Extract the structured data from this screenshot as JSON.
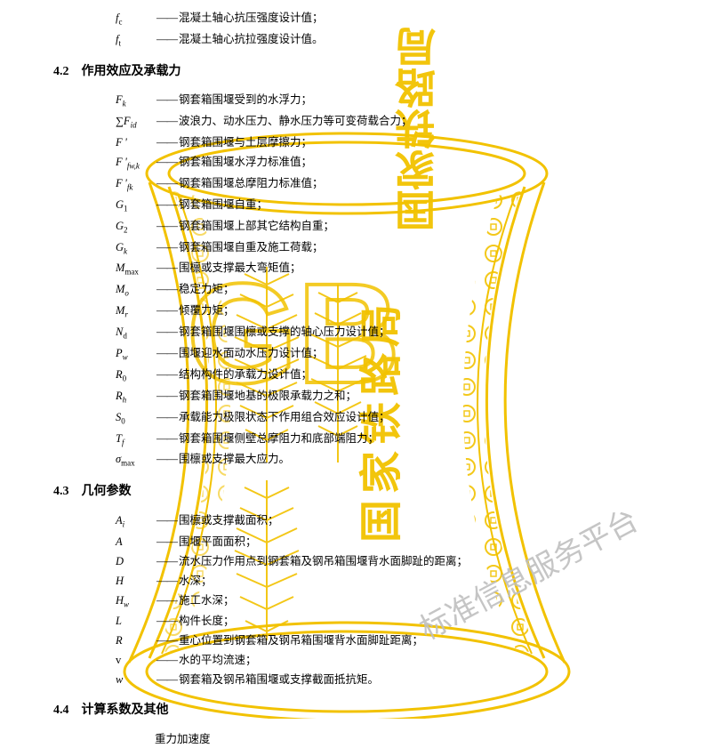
{
  "top_defs": [
    {
      "sym": "f<sub>c</sub>",
      "desc": "混凝土轴心抗压强度设计值；"
    },
    {
      "sym": "f<sub>t</sub>",
      "desc": "混凝土轴心抗拉强度设计值。"
    }
  ],
  "sections": [
    {
      "heading": "4.2　作用效应及承载力",
      "items": [
        {
          "sym": "<i>F</i><sub class='it'>k</sub>",
          "desc": "钢套箱围堰受到的水浮力；"
        },
        {
          "sym": "∑<i>F</i><sub class='it'>id</sub>",
          "desc": "波浪力、动水压力、静水压力等可变荷载合力；"
        },
        {
          "sym": "<i>F&thinsp;'</i>",
          "desc": "钢套箱围堰与土层摩擦力；"
        },
        {
          "sym": "<i>F&thinsp;'</i><sub class='it'>fw,k</sub>",
          "desc": "钢套箱围堰水浮力标准值；"
        },
        {
          "sym": "<i>F&thinsp;'</i><sub class='it'>fk</sub>",
          "desc": "钢套箱围堰总摩阻力标准值；"
        },
        {
          "sym": "<i>G</i><sub>1</sub>",
          "desc": "钢套箱围堰自重；"
        },
        {
          "sym": "<i>G</i><sub>2</sub>",
          "desc": "钢套箱围堰上部其它结构自重；"
        },
        {
          "sym": "<i>G</i><sub class='it'>k</sub>",
          "desc": "钢套箱围堰自重及施工荷载；"
        },
        {
          "sym": "<i>M</i><sub>max</sub>",
          "desc": "围檩或支撑最大弯矩值；"
        },
        {
          "sym": "<i>M</i><sub class='it'>o</sub>",
          "desc": "稳定力矩；"
        },
        {
          "sym": "<i>M</i><sub class='it'>r</sub>",
          "desc": "倾覆力矩；"
        },
        {
          "sym": "<i>N</i><sub>d</sub>",
          "desc": "钢套箱围堰围檩或支撑的轴心压力设计值；"
        },
        {
          "sym": "<i>P</i><sub class='it'>w</sub>",
          "desc": "围堰迎水面动水压力设计值；"
        },
        {
          "sym": "<i>R</i><sub>0</sub>",
          "desc": "结构构件的承载力设计值；"
        },
        {
          "sym": "<i>R</i><sub class='it'>h</sub>",
          "desc": "钢套箱围堰地基的极限承载力之和；"
        },
        {
          "sym": "<i>S</i><sub>0</sub>",
          "desc": "承载能力极限状态下作用组合效应设计值；"
        },
        {
          "sym": "<i>T</i><sub class='it'>f</sub>",
          "desc": "钢套箱围堰侧壁总摩阻力和底部端阻力；"
        },
        {
          "sym": "<span class='sigma'>σ</span><sub>max</sub>",
          "desc": "围檩或支撑最大应力。"
        }
      ]
    },
    {
      "heading": "4.3　几何参数",
      "items": [
        {
          "sym": "<i>A</i><sub class='it'>i</sub>",
          "desc": "围檩或支撑截面积；"
        },
        {
          "sym": "<i>A</i>",
          "desc": "围堰平面面积；"
        },
        {
          "sym": "<i>D</i>",
          "desc": "流水压力作用点到钢套箱及钢吊箱围堰背水面脚趾的距离；"
        },
        {
          "sym": "<i>H</i>",
          "desc": "水深；"
        },
        {
          "sym": "<i>H</i><sub class='it'>w</sub>",
          "desc": "施工水深；"
        },
        {
          "sym": "<i>L</i>",
          "desc": "构件长度；"
        },
        {
          "sym": "<i>R</i>",
          "desc": "重心位置到钢套箱及钢吊箱围堰背水面脚趾距离；"
        },
        {
          "sym": "<span class='upright'>v</span>",
          "desc": "水的平均流速；"
        },
        {
          "sym": "<i>w</i>",
          "desc": "钢套箱及钢吊箱围堰或支撑截面抵抗矩。"
        }
      ]
    },
    {
      "heading": "4.4　计算系数及其他",
      "items": [
        {
          "sym": "",
          "desc": "重力加速度"
        }
      ]
    }
  ],
  "dash": "——",
  "watermark": {
    "stroke": "#f2c200",
    "fill": "#f2c200",
    "text_fill": "#f2c200",
    "vertical_text": "国家铁路局",
    "diag_text": "标准信息服务平台",
    "big_letters": "GB"
  }
}
